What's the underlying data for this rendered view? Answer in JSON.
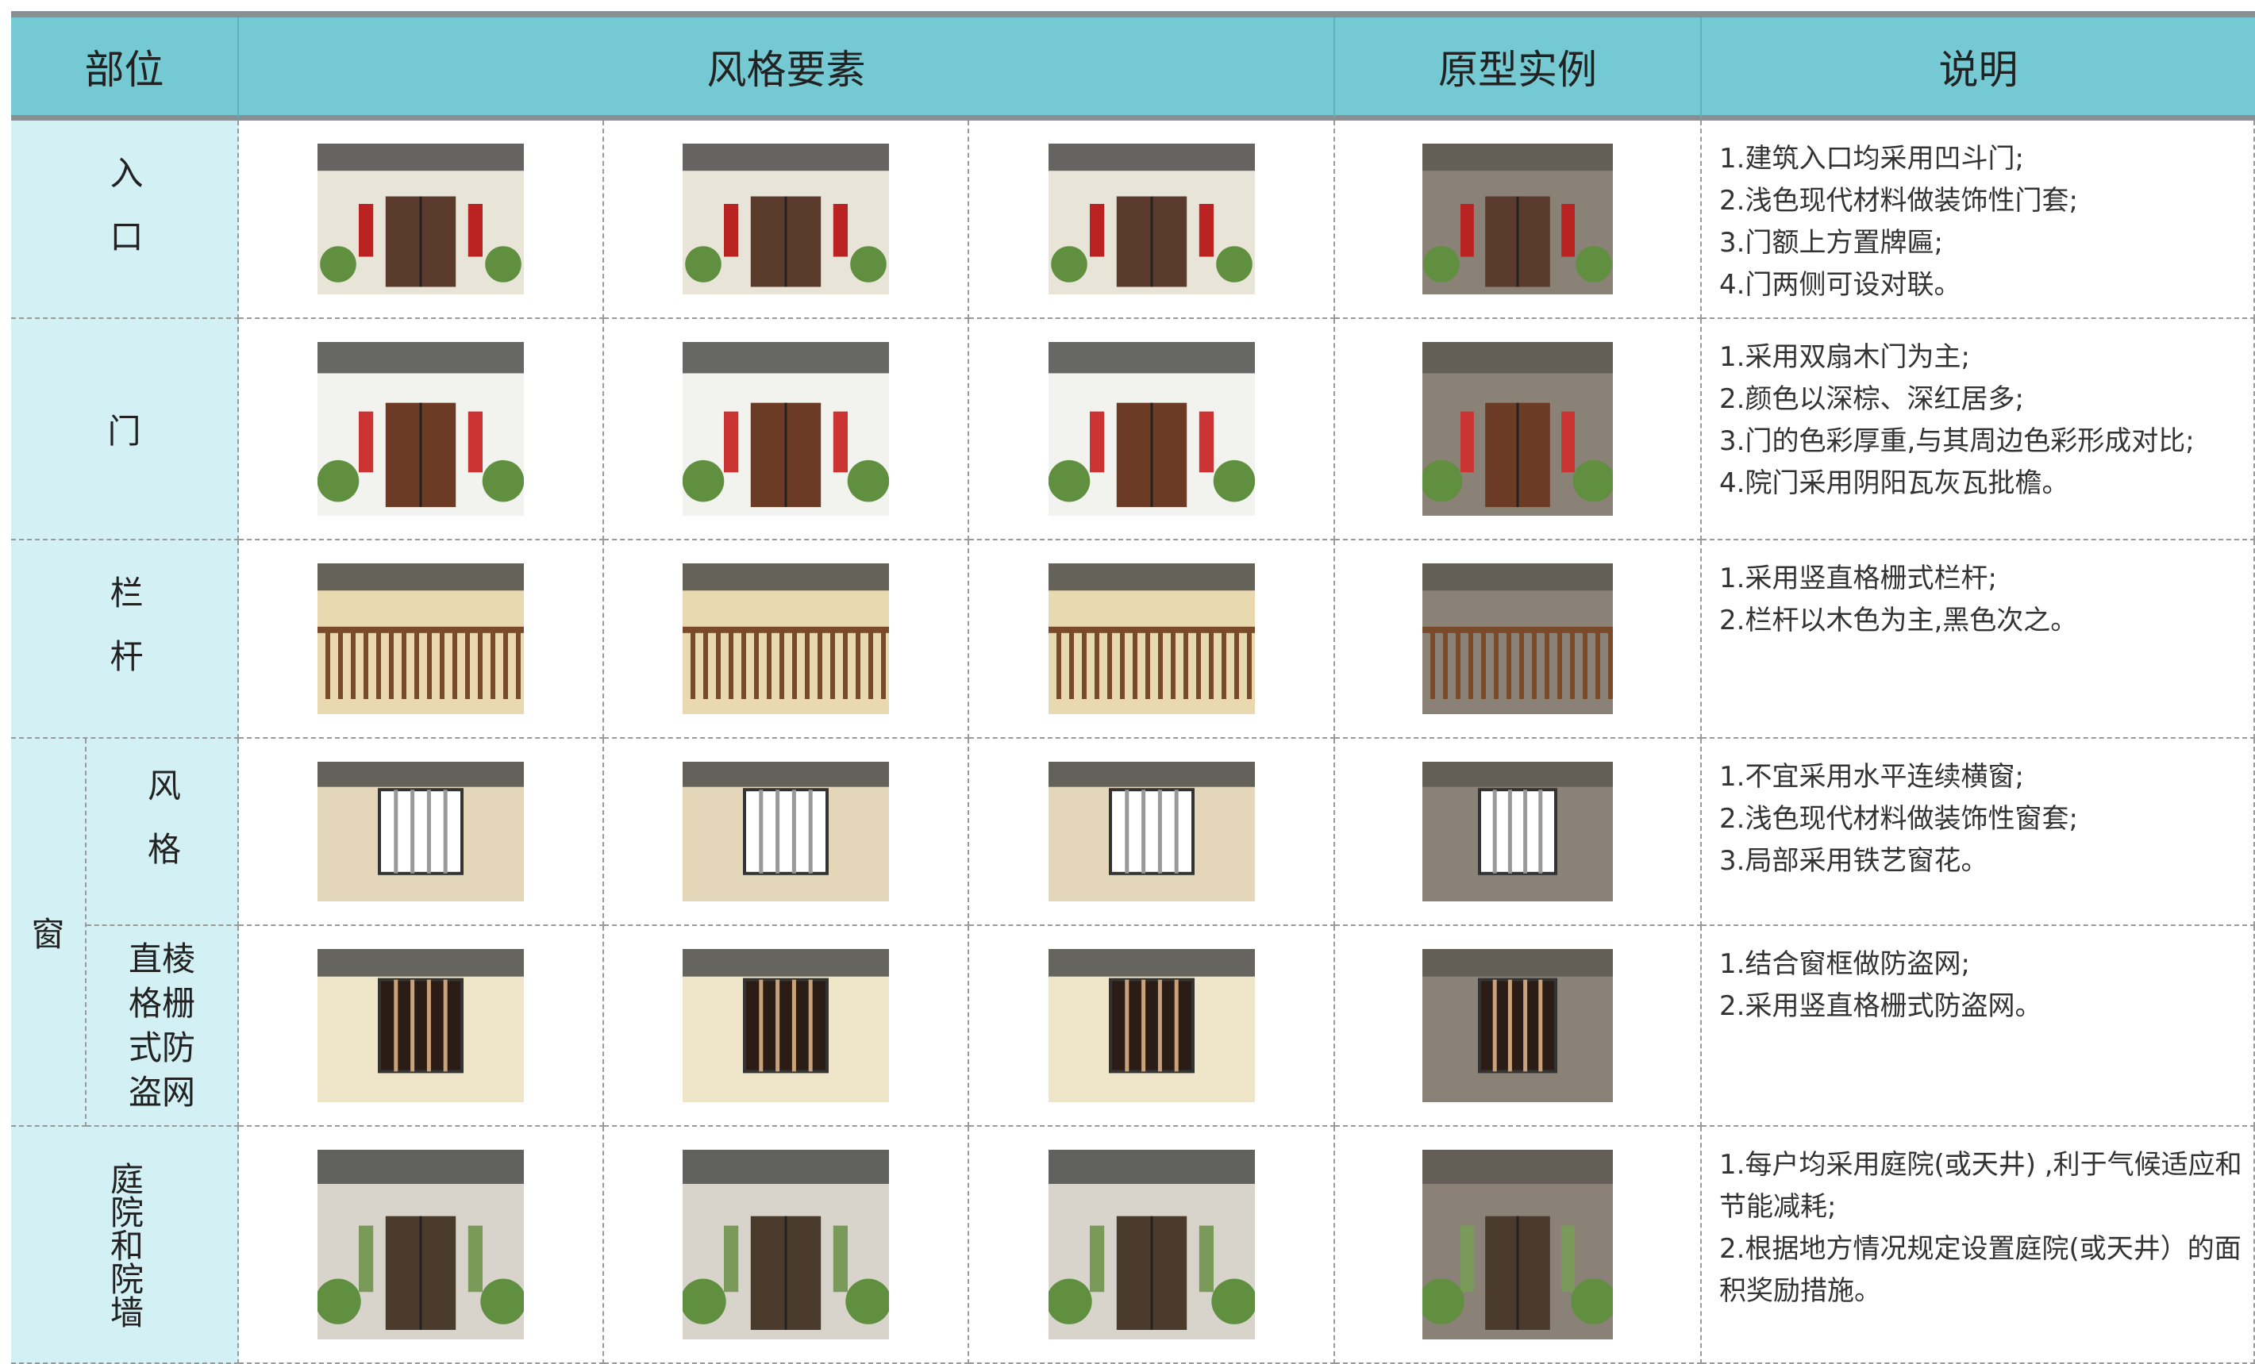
{
  "table": {
    "header": [
      "部位",
      "风格要素",
      "原型实例",
      "说明"
    ],
    "rows": [
      {
        "part": "入口",
        "notes": [
          "1.建筑入口均采用凹斗门;",
          "2.浅色现代材料做装饰性门套;",
          "3.门额上方置牌匾;",
          "4.门两侧可设对联。"
        ]
      },
      {
        "part": "门",
        "notes": [
          "1.采用双扇木门为主;",
          "2.颜色以深棕、深红居多;",
          "3.门的色彩厚重,与其周边色彩形成对比;",
          "4.院门采用阴阳瓦灰瓦批檐。"
        ]
      },
      {
        "part": "栏杆",
        "notes": [
          "1.采用竖直格栅式栏杆;",
          "2.栏杆以木色为主,黑色次之。"
        ]
      },
      {
        "part": "窗",
        "subrows": [
          {
            "part": "风格",
            "notes": [
              "1.不宜采用水平连续横窗;",
              "2.浅色现代材料做装饰性窗套;",
              "3.局部采用铁艺窗花。"
            ]
          },
          {
            "part": "直棱格栅式防盗网",
            "notes": [
              "1.结合窗框做防盗网;",
              "2.采用竖直格栅式防盗网。"
            ]
          }
        ]
      },
      {
        "part": "庭院和院墙",
        "notes": [
          "1.每户均采用庭院(或天井) ,利于气候适应和节能减耗;",
          "2.根据地方情况规定设置庭院(或天井）的面积奖励措施。"
        ]
      }
    ]
  }
}
